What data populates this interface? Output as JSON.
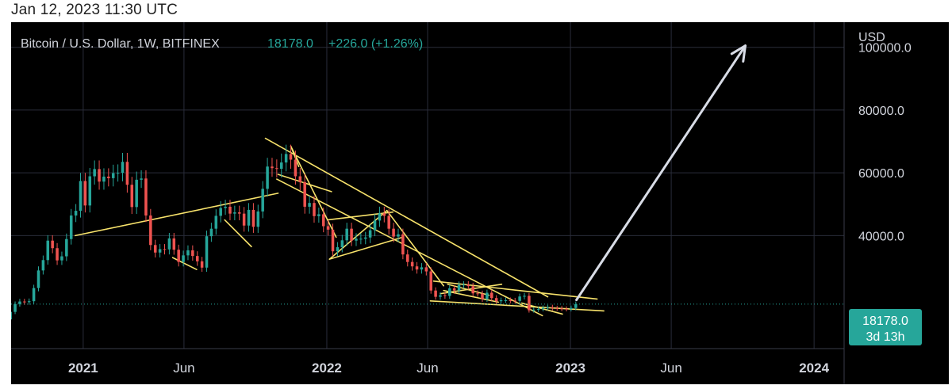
{
  "timestamp": "Jan 12, 2023 11:30 UTC",
  "colors": {
    "background": "#000000",
    "grid": "#2a2d3a",
    "text": "#d1d4dc",
    "up": "#26a69a",
    "down": "#ef5350",
    "trendline": "#f7e26b",
    "arrow": "#d8dce6",
    "price_badge": "#26a69a"
  },
  "chart_data": {
    "type": "candlestick",
    "symbol_title": "Bitcoin / U.S. Dollar, 1W, BITFINEX",
    "last_price": "18178.0",
    "change_text": "+226.0 (+1.26%)",
    "price_label": "18178.0",
    "countdown_label": "3d 13h",
    "currency": "USD",
    "y_ticks": [
      "100000.0",
      "80000.0",
      "60000.0",
      "40000.0"
    ],
    "y_tick_values": [
      100000,
      80000,
      60000,
      40000
    ],
    "x_ticks": [
      "2021",
      "Jun",
      "2022",
      "Jun",
      "2023",
      "Jun",
      "2024"
    ],
    "x_tick_dates": [
      "2021-01-01",
      "2021-06-01",
      "2022-01-01",
      "2022-06-01",
      "2023-01-01",
      "2023-06-01",
      "2024-01-01"
    ],
    "x_tick_bold": [
      true,
      false,
      true,
      false,
      true,
      false,
      true
    ],
    "x_range": [
      "2020-09-15",
      "2024-02-15"
    ],
    "y_range": [
      4000,
      108000
    ],
    "weekly_closes": [
      10400,
      10700,
      11300,
      13000,
      13300,
      15700,
      18200,
      19000,
      18800,
      19100,
      23300,
      28900,
      32200,
      38400,
      36000,
      32100,
      33400,
      38900,
      46400,
      47900,
      57400,
      49600,
      58900,
      61200,
      57200,
      58800,
      58300,
      59900,
      60000,
      63500,
      56200,
      49100,
      57800,
      58200,
      46400,
      37000,
      34600,
      35700,
      35600,
      39100,
      35500,
      31600,
      33700,
      35300,
      33500,
      31800,
      29800,
      39800,
      42200,
      46300,
      48800,
      49200,
      47000,
      47400,
      47000,
      43200,
      48200,
      42800,
      47700,
      54900,
      62000,
      61500,
      61300,
      63300,
      66000,
      64200,
      58900,
      57000,
      49200,
      50400,
      46200,
      46800,
      43000,
      41900,
      35000,
      36300,
      38500,
      42200,
      38400,
      39000,
      39000,
      39400,
      41700,
      44800,
      47100,
      46300,
      42200,
      39700,
      40400,
      34000,
      31600,
      30200,
      29200,
      29900,
      28600,
      22500,
      20500,
      21000,
      20800,
      23200,
      22500,
      24300,
      24400,
      23900,
      21600,
      21500,
      19800,
      21800,
      20100,
      19100,
      19400,
      19400,
      19300,
      19200,
      20600,
      20800,
      16200,
      16400,
      16600,
      17000,
      17200,
      16900,
      16800,
      16700,
      16600,
      16950,
      18178
    ]
  }
}
